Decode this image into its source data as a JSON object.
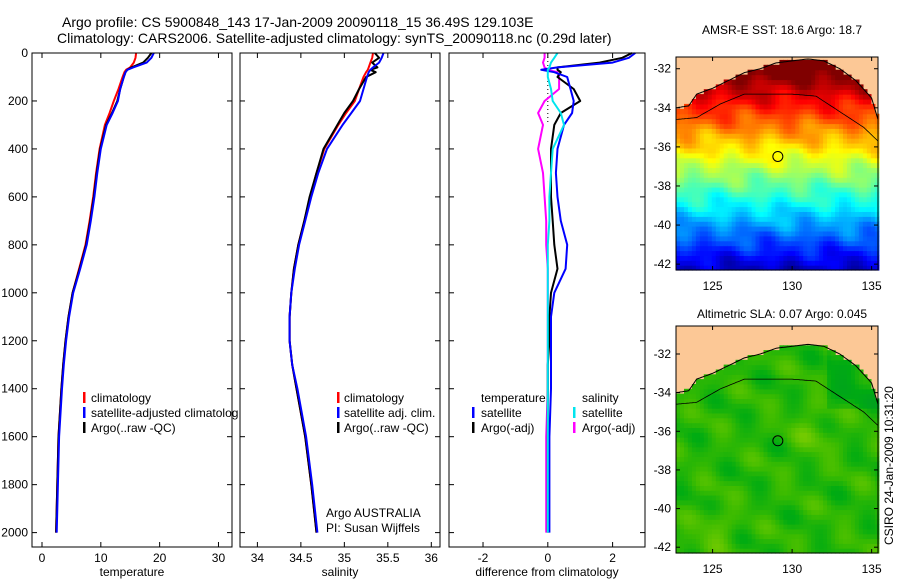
{
  "title": {
    "line1": "Argo profile: CS 5900848_143 17-Jan-2009 20090118_15 36.49S 129.103E",
    "line2": "Climatology: CARS2006. Satellite-adjusted climatology: synTS_20090118.nc (0.29d later)"
  },
  "footer_stamp": "CSIRO 24-Jan-2009 10:31:20",
  "colors": {
    "climatology": "#ff0000",
    "satellite": "#0000ff",
    "argo": "#000000",
    "sal_satellite": "#00e5ee",
    "sal_argo": "#ff00ff",
    "land": "#fcc896"
  },
  "chart_data": [
    {
      "type": "line",
      "xlabel": "temperature",
      "ylabel": "",
      "xlim": [
        -1.7,
        32.3
      ],
      "ylim": [
        0,
        2060
      ],
      "y_reversed": true,
      "xticks": [
        "0",
        "10",
        "20",
        "30"
      ],
      "xtick_values": [
        0,
        10,
        20,
        30
      ],
      "yticks": [
        "0",
        "200",
        "400",
        "600",
        "800",
        "1000",
        "1200",
        "1400",
        "1600",
        "1800",
        "2000"
      ],
      "ytick_values": [
        0,
        200,
        400,
        600,
        800,
        1000,
        1200,
        1400,
        1600,
        1800,
        2000
      ],
      "depth": [
        0,
        20,
        40,
        60,
        70,
        80,
        100,
        150,
        200,
        250,
        300,
        400,
        500,
        600,
        700,
        800,
        900,
        1000,
        1100,
        1200,
        1300,
        1400,
        1600,
        1800,
        2000
      ],
      "series": [
        {
          "name": "climatology",
          "color": "#ff0000",
          "values": [
            16.0,
            15.9,
            15.6,
            15.0,
            14.3,
            14.0,
            13.7,
            13.0,
            12.2,
            11.5,
            10.7,
            9.8,
            9.2,
            8.7,
            8.1,
            7.4,
            6.3,
            5.2,
            4.5,
            4.0,
            3.6,
            3.3,
            2.8,
            2.6,
            2.4
          ]
        },
        {
          "name": "Argo(..raw -QC)",
          "color": "#000000",
          "values": [
            18.6,
            18.0,
            17.2,
            15.2,
            14.5,
            14.2,
            13.9,
            13.3,
            12.8,
            11.9,
            10.9,
            9.9,
            9.3,
            8.8,
            8.2,
            7.5,
            6.4,
            5.2,
            4.5,
            4.0,
            3.6,
            3.3,
            2.8,
            2.6,
            2.4
          ]
        },
        {
          "name": "satellite-adjusted climatology",
          "color": "#0000ff",
          "values": [
            19.0,
            18.6,
            17.8,
            15.5,
            14.5,
            14.2,
            13.9,
            13.3,
            12.9,
            12.0,
            11.0,
            10.0,
            9.4,
            8.9,
            8.3,
            7.6,
            6.5,
            5.3,
            4.6,
            4.1,
            3.7,
            3.4,
            2.9,
            2.7,
            2.5
          ]
        }
      ],
      "legend": [
        {
          "label": "climatology",
          "color": "#ff0000"
        },
        {
          "label": "satellite-adjusted climatology",
          "color": "#0000ff"
        },
        {
          "label": "Argo(..raw -QC)",
          "color": "#000000"
        }
      ],
      "legend_placement": "lower-right"
    },
    {
      "type": "line",
      "xlabel": "salinity",
      "xlim": [
        33.8,
        36.1
      ],
      "ylim": [
        0,
        2060
      ],
      "y_reversed": true,
      "xticks": [
        "34",
        "34.5",
        "35",
        "35.5",
        "36"
      ],
      "xtick_values": [
        34,
        34.5,
        35,
        35.5,
        36
      ],
      "depth": [
        0,
        20,
        40,
        60,
        70,
        80,
        100,
        150,
        200,
        250,
        300,
        400,
        500,
        600,
        700,
        800,
        900,
        1000,
        1100,
        1200,
        1300,
        1400,
        1600,
        1800,
        2000
      ],
      "series": [
        {
          "name": "climatology",
          "color": "#ff0000",
          "values": [
            35.33,
            35.32,
            35.3,
            35.28,
            35.27,
            35.25,
            35.22,
            35.17,
            35.12,
            35.02,
            34.93,
            34.77,
            34.68,
            34.61,
            34.54,
            34.47,
            34.42,
            34.39,
            34.37,
            34.37,
            34.4,
            34.45,
            34.55,
            34.62,
            34.68
          ]
        },
        {
          "name": "Argo(..raw -QC)",
          "color": "#000000",
          "values": [
            35.35,
            35.4,
            35.32,
            35.38,
            35.3,
            35.36,
            35.25,
            35.17,
            35.1,
            35.0,
            34.92,
            34.76,
            34.68,
            34.6,
            34.54,
            34.47,
            34.42,
            34.39,
            34.37,
            34.37,
            34.4,
            34.45,
            34.55,
            34.62,
            34.68
          ]
        },
        {
          "name": "satellite adj. clim.",
          "color": "#0000ff",
          "values": [
            35.45,
            35.43,
            35.4,
            35.33,
            35.3,
            35.28,
            35.26,
            35.22,
            35.18,
            35.08,
            34.98,
            34.8,
            34.7,
            34.62,
            34.55,
            34.48,
            34.43,
            34.39,
            34.37,
            34.37,
            34.4,
            34.46,
            34.56,
            34.63,
            34.69
          ]
        }
      ],
      "legend": [
        {
          "label": "climatology",
          "color": "#ff0000"
        },
        {
          "label": "satellite adj. clim.",
          "color": "#0000ff"
        },
        {
          "label": "Argo(..raw -QC)",
          "color": "#000000"
        }
      ],
      "annotations": [
        "Argo AUSTRALIA",
        "PI: Susan Wijffels"
      ]
    },
    {
      "type": "line",
      "xlabel": "difference from climatology",
      "xlim": [
        -3.05,
        3.0
      ],
      "ylim": [
        0,
        2060
      ],
      "y_reversed": true,
      "xticks": [
        "-2",
        "0",
        "2"
      ],
      "xtick_values": [
        -2,
        0,
        2
      ],
      "depth": [
        0,
        20,
        40,
        60,
        70,
        80,
        100,
        150,
        200,
        250,
        300,
        400,
        500,
        600,
        700,
        800,
        900,
        1000,
        1100,
        1200,
        1300,
        1400,
        1600,
        1800,
        2000
      ],
      "series": [
        {
          "name": "salinity Argo(-adj)",
          "color": "#ff00ff",
          "values": [
            -0.1,
            -0.1,
            -0.15,
            -0.1,
            0.0,
            0.3,
            0.35,
            0.35,
            -0.1,
            -0.3,
            -0.15,
            -0.3,
            -0.15,
            -0.1,
            -0.05,
            -0.05,
            0,
            0,
            0,
            0,
            0,
            0,
            -0.05,
            -0.05,
            -0.05
          ]
        },
        {
          "name": "temperature Argo(-adj)",
          "color": "#000000",
          "values": [
            2.6,
            2.3,
            1.6,
            0.3,
            0.3,
            0.4,
            0.3,
            0.8,
            1.0,
            0.4,
            0.2,
            0.1,
            0.1,
            0.1,
            0.15,
            0.2,
            0.3,
            0.1,
            0.05,
            0.05,
            0,
            0,
            0,
            0,
            0
          ]
        },
        {
          "name": "temperature satellite",
          "color": "#0000ff",
          "values": [
            2.7,
            2.5,
            2.0,
            0.3,
            -0.2,
            0.2,
            0.6,
            0.7,
            0.8,
            0.75,
            0.5,
            0.3,
            0.25,
            0.3,
            0.4,
            0.6,
            0.55,
            0.2,
            0.1,
            0.1,
            0.1,
            0.1,
            0.05,
            0.05,
            0.05
          ]
        },
        {
          "name": "salinity satellite",
          "color": "#00e5ee",
          "values": [
            0.3,
            0.2,
            0.1,
            0.05,
            0,
            0,
            0,
            0.1,
            0.15,
            0.4,
            0.5,
            0.15,
            0.1,
            0.05,
            0.05,
            0,
            0,
            0,
            0,
            0,
            0,
            0,
            0,
            0,
            0
          ]
        }
      ],
      "legend": {
        "temperature_heading": "temperature",
        "salinity_heading": "salinity",
        "temperature": [
          {
            "label": "satellite",
            "color": "#0000ff"
          },
          {
            "label": "Argo(-adj)",
            "color": "#000000"
          }
        ],
        "salinity": [
          {
            "label": "satellite",
            "color": "#00e5ee"
          },
          {
            "label": "Argo(-adj)",
            "color": "#ff00ff"
          }
        ]
      }
    },
    {
      "type": "heatmap",
      "title": "AMSR-E SST: 18.6 Argo: 18.7",
      "field": "sst",
      "xlim": [
        122.7,
        135.4
      ],
      "ylim": [
        -42.3,
        -31.4
      ],
      "xticks": [
        "125",
        "130",
        "135"
      ],
      "xtick_values": [
        125,
        130,
        135
      ],
      "yticks": [
        "-32",
        "-34",
        "-36",
        "-38",
        "-40",
        "-42"
      ],
      "ytick_values": [
        -32,
        -34,
        -36,
        -38,
        -40,
        -42
      ],
      "marker": {
        "lon": 129.103,
        "lat": -36.49
      }
    },
    {
      "type": "heatmap",
      "title": "Altimetric SLA: 0.07 Argo: 0.045",
      "field": "sla",
      "xlim": [
        122.7,
        135.4
      ],
      "ylim": [
        -42.3,
        -30.55
      ],
      "xticks": [
        "125",
        "130",
        "135"
      ],
      "xtick_values": [
        125,
        130,
        135
      ],
      "yticks": [
        "-32",
        "-34",
        "-36",
        "-38",
        "-40",
        "-42"
      ],
      "ytick_values": [
        -32,
        -34,
        -36,
        -38,
        -40,
        -42
      ],
      "marker": {
        "lon": 129.103,
        "lat": -36.49
      }
    }
  ]
}
